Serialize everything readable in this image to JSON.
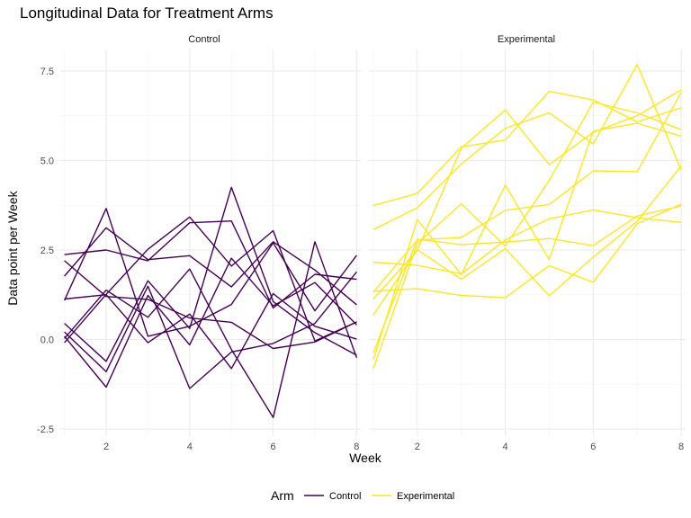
{
  "chart_data": {
    "type": "line",
    "title": "Longitudinal Data for Treatment Arms",
    "xlabel": "Week",
    "ylabel": "Data point per Week",
    "xlim": [
      0.9,
      8.1
    ],
    "ylim": [
      -2.7,
      8.1
    ],
    "x_ticks": [
      "2",
      "4",
      "6",
      "8"
    ],
    "x_tick_values": [
      2,
      4,
      6,
      8
    ],
    "y_ticks": [
      "-2.5",
      "0.0",
      "2.5",
      "5.0",
      "7.5"
    ],
    "y_tick_values": [
      -2.5,
      0,
      2.5,
      5,
      7.5
    ],
    "grid": true,
    "legend": {
      "title": "Arm",
      "placement": "bottom",
      "entries": [
        {
          "label": "Control",
          "color": "#440154"
        },
        {
          "label": "Experimental",
          "color": "#FDE725"
        }
      ]
    },
    "x": [
      1,
      2,
      3,
      4,
      5,
      6,
      7,
      8
    ],
    "panels": [
      {
        "strip": "Control",
        "color": "#440154",
        "series": [
          {
            "values": [
              2.37,
              2.5,
              2.2,
              3.26,
              3.31,
              0.88,
              1.82,
              1.68
            ]
          },
          {
            "values": [
              1.77,
              3.12,
              2.23,
              2.34,
              1.47,
              2.73,
              1.94,
              0.97
            ]
          },
          {
            "values": [
              0.45,
              -0.61,
              1.64,
              0.31,
              4.25,
              1.06,
              0.19,
              -0.44
            ]
          },
          {
            "values": [
              1.09,
              3.66,
              0.09,
              0.37,
              0.98,
              2.7,
              0.8,
              2.35
            ]
          },
          {
            "values": [
              0.03,
              1.38,
              0.62,
              1.97,
              -0.28,
              -2.18,
              2.73,
              -0.51
            ]
          },
          {
            "values": [
              -0.09,
              1.26,
              2.52,
              3.42,
              2.05,
              3.04,
              -0.04,
              0.49
            ]
          },
          {
            "values": [
              0.09,
              -1.33,
              1.23,
              -0.15,
              2.27,
              0.94,
              1.59,
              0.41
            ]
          },
          {
            "values": [
              0.21,
              -0.9,
              1.49,
              -1.37,
              -0.35,
              -0.11,
              0.45,
              1.89
            ]
          },
          {
            "values": [
              1.13,
              1.25,
              -0.09,
              0.71,
              -0.81,
              1.28,
              0.37,
              0.01
            ]
          },
          {
            "values": [
              2.2,
              1.2,
              1.12,
              0.6,
              0.48,
              -0.25,
              -0.07,
              0.49
            ]
          }
        ]
      },
      {
        "strip": "Experimental",
        "color": "#FDE725",
        "series": [
          {
            "values": [
              3.74,
              4.08,
              5.38,
              5.57,
              6.93,
              6.69,
              6.08,
              6.47
            ]
          },
          {
            "values": [
              3.07,
              3.68,
              4.9,
              5.9,
              6.33,
              5.46,
              7.68,
              4.73
            ]
          },
          {
            "values": [
              1.13,
              2.49,
              5.34,
              6.41,
              4.88,
              5.79,
              6.25,
              6.97
            ]
          },
          {
            "values": [
              -0.82,
              2.68,
              3.79,
              2.61,
              4.44,
              6.63,
              6.33,
              5.86
            ]
          },
          {
            "values": [
              -0.57,
              3.35,
              1.81,
              4.31,
              2.23,
              5.82,
              6.04,
              5.68
            ]
          },
          {
            "values": [
              1.32,
              2.78,
              2.85,
              3.61,
              3.77,
              4.71,
              4.69,
              6.9
            ]
          },
          {
            "values": [
              2.16,
              2.07,
              1.83,
              2.78,
              3.37,
              3.62,
              3.4,
              3.27
            ]
          },
          {
            "values": [
              -0.37,
              2.8,
              2.65,
              2.72,
              2.82,
              2.62,
              3.45,
              3.73
            ]
          },
          {
            "values": [
              0.68,
              2.51,
              1.68,
              2.54,
              1.22,
              2.3,
              3.3,
              4.85
            ]
          },
          {
            "values": [
              1.35,
              1.42,
              1.23,
              1.17,
              2.06,
              1.6,
              3.23,
              3.78
            ]
          }
        ]
      }
    ]
  }
}
